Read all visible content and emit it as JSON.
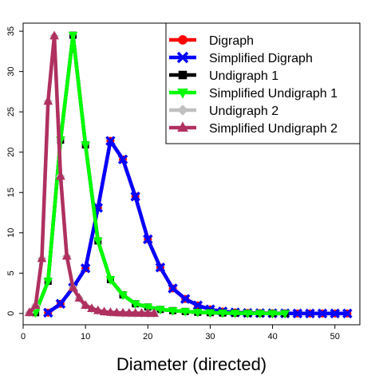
{
  "chart_data": {
    "type": "line",
    "title": "",
    "xlabel": "Diameter (directed)",
    "ylabel": "",
    "xlim": [
      0,
      54
    ],
    "ylim": [
      -1.4,
      36
    ],
    "x_ticks": [
      0,
      10,
      20,
      30,
      40,
      50
    ],
    "y_ticks": [
      0,
      5,
      10,
      15,
      20,
      25,
      30,
      35
    ],
    "grid": false,
    "legend_position": "top-right",
    "series": [
      {
        "name": "Digraph",
        "color": "#ff0000",
        "marker": "circle",
        "x": [
          4,
          6,
          8,
          10,
          12,
          14,
          16,
          18,
          20,
          22,
          24,
          26,
          28,
          30,
          32,
          34,
          36,
          38,
          40,
          42,
          44,
          46,
          48,
          50,
          52
        ],
        "y": [
          0.1,
          1.2,
          3.2,
          5.6,
          13.1,
          21.4,
          19.1,
          14.5,
          9.2,
          5.7,
          3.1,
          1.8,
          1.0,
          0.5,
          0.25,
          0.12,
          0.06,
          0.04,
          0.02,
          0.01,
          0.0,
          0.0,
          0.0,
          0.0,
          0.0
        ]
      },
      {
        "name": "Simplified Digraph",
        "color": "#0000ff",
        "marker": "x",
        "x": [
          4,
          6,
          8,
          10,
          12,
          14,
          16,
          18,
          20,
          22,
          24,
          26,
          28,
          30,
          32,
          34,
          36,
          38,
          40,
          42,
          44,
          46,
          48,
          50,
          52
        ],
        "y": [
          0.1,
          1.2,
          3.2,
          5.6,
          13.1,
          21.4,
          19.1,
          14.5,
          9.2,
          5.7,
          3.1,
          1.8,
          1.0,
          0.5,
          0.25,
          0.12,
          0.06,
          0.04,
          0.02,
          0.01,
          0.0,
          0.0,
          0.0,
          0.0,
          0.0
        ]
      },
      {
        "name": "Undigraph 1",
        "color": "#000000",
        "marker": "square",
        "x": [
          2,
          4,
          6,
          8,
          10,
          12,
          14,
          16,
          18,
          20,
          22,
          24,
          26,
          28,
          30,
          32,
          34,
          36,
          38,
          40,
          42
        ],
        "y": [
          0.1,
          4.0,
          21.5,
          34.5,
          20.9,
          9.0,
          4.2,
          2.3,
          1.2,
          0.8,
          0.5,
          0.35,
          0.25,
          0.15,
          0.1,
          0.06,
          0.04,
          0.02,
          0.01,
          0.0,
          0.0
        ]
      },
      {
        "name": "Simplified Undigraph 1",
        "color": "#00ff00",
        "marker": "triangle-down",
        "x": [
          2,
          4,
          6,
          8,
          10,
          12,
          14,
          16,
          18,
          20,
          22,
          24,
          26,
          28,
          30,
          32,
          34,
          36,
          38,
          40,
          42
        ],
        "y": [
          0.1,
          4.0,
          21.5,
          34.5,
          20.9,
          9.0,
          4.2,
          2.3,
          1.2,
          0.8,
          0.5,
          0.35,
          0.25,
          0.15,
          0.1,
          0.06,
          0.04,
          0.02,
          0.01,
          0.0,
          0.0
        ]
      },
      {
        "name": "Undigraph 2",
        "color": "#c0c0c0",
        "marker": "diamond",
        "x": [
          1,
          2,
          3,
          4,
          5,
          6,
          7,
          8,
          9,
          10,
          11,
          12,
          13,
          14,
          15,
          16,
          17,
          18,
          19,
          20,
          21
        ],
        "y": [
          0.1,
          1.0,
          6.8,
          26.3,
          34.4,
          17.0,
          7.1,
          3.2,
          1.9,
          1.0,
          0.6,
          0.35,
          0.2,
          0.12,
          0.08,
          0.05,
          0.03,
          0.02,
          0.01,
          0.0,
          0.0
        ]
      },
      {
        "name": "Simplified Undigraph 2",
        "color": "#b03060",
        "marker": "triangle",
        "x": [
          1,
          2,
          3,
          4,
          5,
          6,
          7,
          8,
          9,
          10,
          11,
          12,
          13,
          14,
          15,
          16,
          17,
          18,
          19,
          20,
          21
        ],
        "y": [
          0.1,
          1.0,
          6.8,
          26.3,
          34.4,
          17.0,
          7.1,
          3.2,
          1.9,
          1.0,
          0.6,
          0.35,
          0.2,
          0.12,
          0.08,
          0.05,
          0.03,
          0.02,
          0.01,
          0.0,
          0.0
        ]
      }
    ]
  }
}
